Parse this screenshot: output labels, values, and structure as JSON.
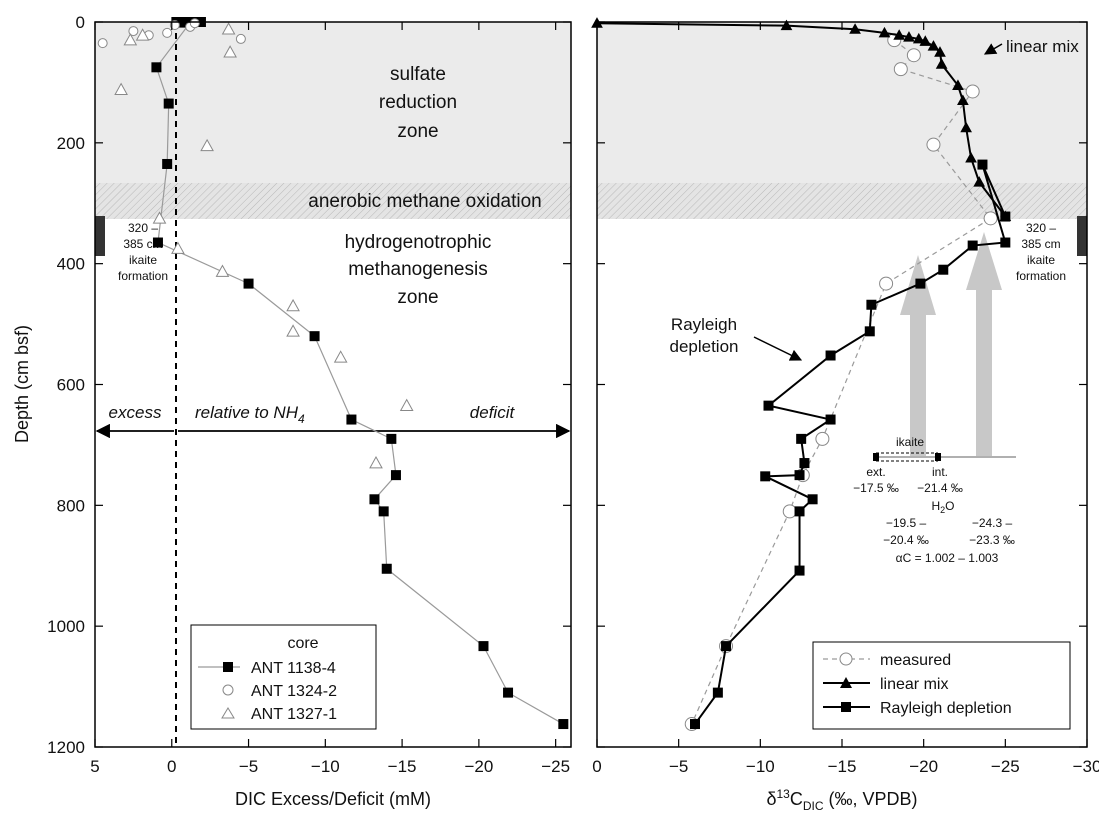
{
  "colors": {
    "zone_fill": "#ebebeb",
    "hatch_fill": "#e4e4e4",
    "ikaite_bar": "#333333",
    "gray_line": "#9a9a9a",
    "gray_arrow": "#c8c8c8",
    "black": "#000000"
  },
  "zones": {
    "sulfate": [
      "sulfate",
      "reduction",
      "zone"
    ],
    "aom": "anerobic methane oxidation",
    "methano": [
      "hydrogenotrophic",
      "methanogenesis",
      "zone"
    ],
    "ikaite_left": [
      "320 –",
      "385 cm",
      "ikaite",
      "formation"
    ],
    "ikaite_right": [
      "320 –",
      "385 cm",
      "ikaite",
      "formation"
    ]
  },
  "annotations": {
    "excess": "excess",
    "relative": "relative to NH",
    "relative_sub": "4",
    "deficit": "deficit",
    "linear_mix": "linear mix",
    "rayleigh": [
      "Rayleigh",
      "depletion"
    ],
    "ikaite_title": "ikaite",
    "ikaite_ext": [
      "ext.",
      "−17.5 ‰"
    ],
    "ikaite_int": [
      "int.",
      "−21.4 ‰"
    ],
    "h2o_title": "H",
    "h2o_sub": "2",
    "h2o_title2": "O",
    "h2o_left": [
      "−19.5 –",
      "−20.4 ‰"
    ],
    "h2o_right": [
      "−24.3 –",
      "−23.3 ‰"
    ],
    "alpha": "αC = 1.002 – 1.003"
  },
  "legend_left": {
    "title": "core",
    "entries": [
      "ANT 1138-4",
      "ANT 1324-2",
      "ANT 1327-1"
    ]
  },
  "legend_right": {
    "entries": [
      "measured",
      "linear mix",
      "Rayleigh depletion"
    ]
  },
  "chart_data": [
    {
      "type": "scatter",
      "xlabel": "DIC Excess/Deficit (mM)",
      "ylabel": "Depth (cm bsf)",
      "xlim": [
        5,
        -26
      ],
      "ylim": [
        1200,
        0
      ],
      "x_ticks": [
        5,
        0,
        -5,
        -10,
        -15,
        -20,
        -25
      ],
      "x_tick_labels": [
        "5",
        "0",
        "−5",
        "−10",
        "−15",
        "−20",
        "−25"
      ],
      "y_ticks": [
        0,
        200,
        400,
        600,
        800,
        1000,
        1200
      ],
      "y_tick_labels": [
        "0",
        "200",
        "400",
        "600",
        "800",
        "1000",
        "1200"
      ],
      "zones": {
        "sulfate_reduction": [
          0,
          265
        ],
        "aom": [
          265,
          325
        ],
        "ikaite_formation": [
          320,
          385
        ]
      },
      "series": [
        {
          "name": "ANT 1138-4",
          "marker": "square",
          "line": true,
          "x": [
            -0.5,
            -0.8,
            -1.2,
            1.0,
            0.2,
            0.3,
            0.9,
            -0.3,
            -0.6,
            -1.1,
            -1.2,
            -1.5,
            -0.4,
            -0.9,
            -1.5,
            -1.3,
            -1.9,
            -5.0,
            -9.3,
            -11.7,
            -14.3,
            -14.6,
            -13.2,
            -13.8,
            -14.0,
            -20.3,
            -21.9,
            -25.5
          ],
          "y": [
            0,
            1,
            1,
            75,
            135,
            235,
            365,
            0,
            0,
            0,
            0,
            0,
            0,
            0,
            0,
            0,
            0,
            433,
            520,
            658,
            690,
            750,
            790,
            810,
            905,
            1033,
            1110,
            1162
          ]
        },
        {
          "name": "ANT 1324-2",
          "marker": "circle",
          "line": false,
          "x": [
            4.5,
            2.5,
            1.5,
            0.3,
            -0.2,
            -1.2,
            -1.5,
            -4.5
          ],
          "y": [
            35,
            15,
            22,
            18,
            5,
            8,
            2,
            28
          ]
        },
        {
          "name": "ANT 1327-1",
          "marker": "triangle",
          "line": false,
          "x": [
            3.3,
            2.7,
            1.9,
            -3.7,
            -3.8,
            -2.3,
            0.8,
            -0.4,
            -3.3,
            -7.9,
            -7.9,
            -11.0,
            -15.3,
            -13.3
          ],
          "y": [
            112,
            30,
            22,
            12,
            50,
            205,
            325,
            375,
            413,
            470,
            512,
            555,
            635,
            730
          ]
        }
      ]
    },
    {
      "type": "line",
      "xlabel": "δ13C DIC (‰, VPDB)",
      "ylabel": "Depth (cm bsf)",
      "xlim": [
        0,
        -30
      ],
      "ylim": [
        1200,
        0
      ],
      "x_ticks": [
        0,
        -5,
        -10,
        -15,
        -20,
        -25,
        -30
      ],
      "x_tick_labels": [
        "0",
        "−5",
        "−10",
        "−15",
        "−20",
        "−25",
        "−30"
      ],
      "y_ticks": [
        0,
        200,
        400,
        600,
        800,
        1000,
        1200
      ],
      "series": [
        {
          "name": "measured",
          "marker": "circle",
          "style": "dashed",
          "x": [
            -18.2,
            -19.4,
            -18.6,
            -23.0,
            -20.6,
            -24.1,
            -17.7,
            -13.8,
            -12.6,
            -11.8,
            -7.9,
            -5.8
          ],
          "y": [
            30,
            55,
            78,
            115,
            203,
            325,
            433,
            690,
            750,
            810,
            1033,
            1162
          ]
        },
        {
          "name": "linear mix",
          "marker": "triangle",
          "style": "solid",
          "x": [
            0,
            -11.6,
            -15.8,
            -17.6,
            -18.5,
            -19.1,
            -19.7,
            -20.1,
            -20.6,
            -21.0,
            -21.1,
            -22.1,
            -22.4,
            -22.6,
            -22.9,
            -23.4,
            -25.0
          ],
          "y": [
            2,
            6,
            12,
            18,
            22,
            25,
            28,
            32,
            40,
            50,
            70,
            105,
            130,
            175,
            225,
            265,
            322
          ]
        },
        {
          "name": "Rayleigh depletion",
          "marker": "square",
          "style": "solid",
          "x": [
            -25.0,
            -23.6,
            -25.0,
            -23.0,
            -21.2,
            -19.8,
            -16.8,
            -16.7,
            -14.3,
            -10.5,
            -14.3,
            -12.5,
            -12.7,
            -12.4,
            -10.3,
            -13.2,
            -12.4,
            -12.4,
            -7.9,
            -7.4,
            -6.0
          ],
          "y": [
            322,
            236,
            365,
            370,
            410,
            433,
            468,
            512,
            552,
            635,
            658,
            690,
            730,
            750,
            752,
            790,
            810,
            908,
            1033,
            1110,
            1162
          ]
        }
      ]
    }
  ]
}
